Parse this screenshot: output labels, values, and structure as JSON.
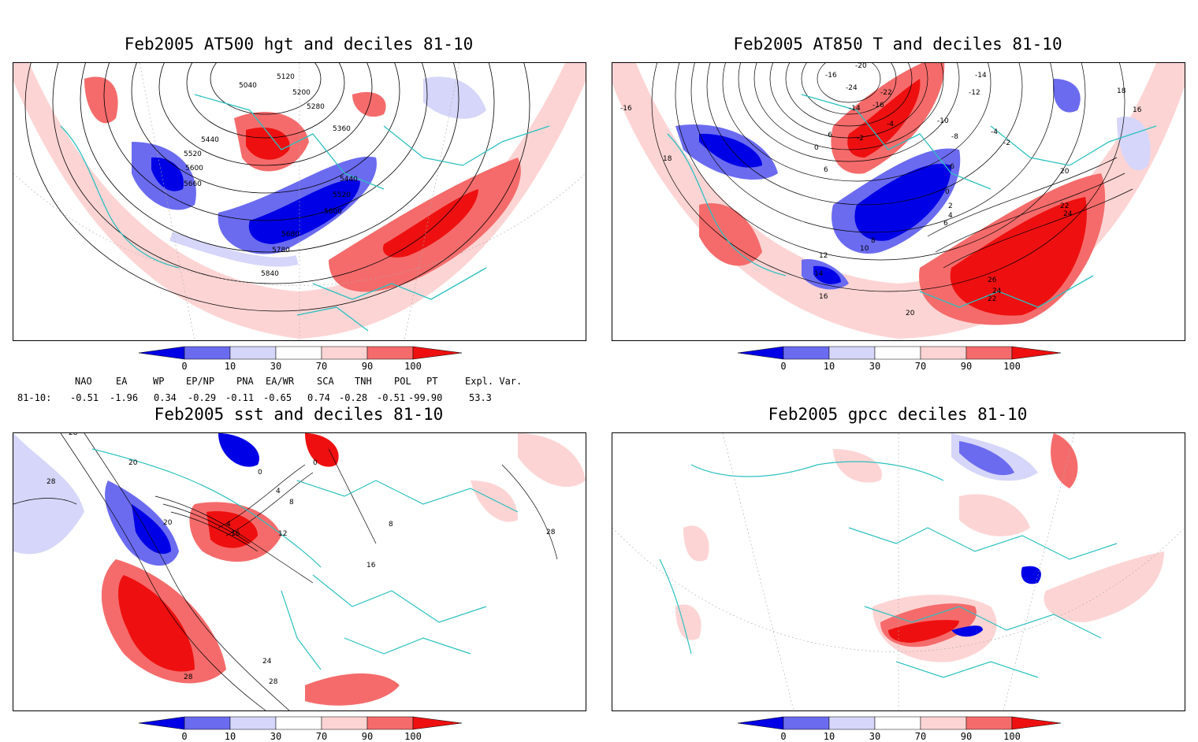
{
  "panels": {
    "top_left": {
      "title": "Feb2005 AT500 hgt and deciles 81-10",
      "contour_labels": [
        "5040",
        "5120",
        "5200",
        "5280",
        "5360",
        "5440",
        "5520",
        "5600",
        "5660",
        "5440",
        "5520",
        "5600",
        "5680",
        "5780",
        "5840"
      ]
    },
    "top_right": {
      "title": "Feb2005 AT850 T and deciles 81-10",
      "contour_labels": [
        "-20",
        "-16",
        "-14",
        "-12",
        "-24",
        "-22",
        "-14",
        "-16",
        "-4",
        "-10",
        "-4",
        "-8",
        "-6",
        "-2",
        "0",
        "6",
        "-2",
        "-6",
        "0",
        "2",
        "4",
        "6",
        "8",
        "10",
        "12",
        "14",
        "16",
        "18",
        "18",
        "16",
        "20",
        "22",
        "24",
        "26",
        "24",
        "22",
        "20",
        "-16"
      ]
    },
    "bottom_left": {
      "title": "Feb2005 sst and deciles 81-10",
      "contour_labels": [
        "28",
        "28",
        "20",
        "0",
        "0",
        "4",
        "8",
        "4",
        "16",
        "12",
        "20",
        "16",
        "24",
        "28",
        "28",
        "28",
        "8"
      ]
    },
    "bottom_right": {
      "title": "Feb2005 gpcc deciles 81-10"
    }
  },
  "colorbar": {
    "ticks": [
      "0",
      "10",
      "30",
      "70",
      "90",
      "100"
    ],
    "colors": [
      "#0000e6",
      "#6b6bf0",
      "#d6d6fa",
      "#ffffff",
      "#fdd4d4",
      "#f56b6b",
      "#ee1010"
    ]
  },
  "indices": {
    "header": [
      "NAO",
      "EA",
      "WP",
      "EP/NP",
      "PNA",
      "EA/WR",
      "SCA",
      "TNH",
      "POL",
      "PT",
      "Expl. Var."
    ],
    "row_label": "81-10:",
    "values": [
      "-0.51",
      "-1.96",
      "0.34",
      "-0.29",
      "-0.11",
      "-0.65",
      "0.74",
      "-0.28",
      "-0.51",
      "-99.90",
      "53.3"
    ]
  }
}
